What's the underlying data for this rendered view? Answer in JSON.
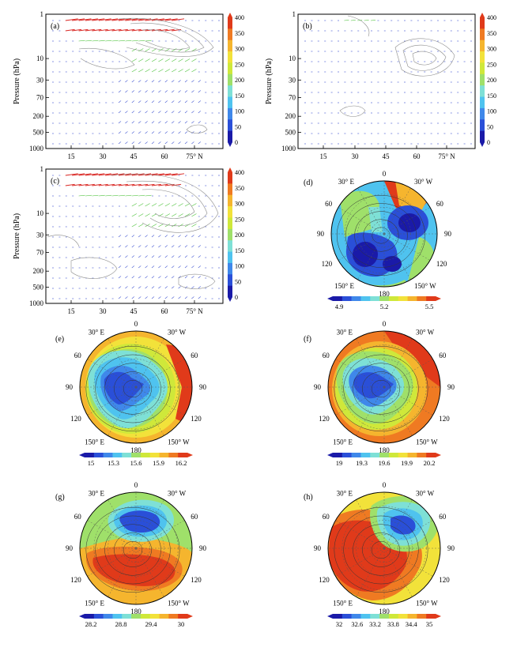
{
  "chart_data": [
    {
      "id": "a",
      "type": "vector-contour",
      "panel_label": "(a)",
      "ylabel": "Pressure (hPa)",
      "y_ticks": [
        "1",
        "10",
        "30",
        "70",
        "200",
        "500",
        "1000"
      ],
      "x_ticks": [
        "15",
        "30",
        "45",
        "60",
        "75° N"
      ],
      "colorbar_labels": [
        "400",
        "350",
        "300",
        "250",
        "200",
        "150",
        "100",
        "50",
        "0"
      ]
    },
    {
      "id": "b",
      "type": "vector-contour",
      "panel_label": "(b)",
      "ylabel": "Pressure (hPa)",
      "y_ticks": [
        "1",
        "10",
        "30",
        "70",
        "200",
        "500",
        "1000"
      ],
      "x_ticks": [
        "15",
        "30",
        "45",
        "60",
        "75° N"
      ],
      "colorbar_labels": [
        "400",
        "350",
        "300",
        "250",
        "200",
        "150",
        "100",
        "50",
        "0"
      ]
    },
    {
      "id": "c",
      "type": "vector-contour",
      "panel_label": "(c)",
      "ylabel": "Pressure (hPa)",
      "y_ticks": [
        "1",
        "10",
        "30",
        "70",
        "200",
        "500",
        "1000"
      ],
      "x_ticks": [
        "15",
        "30",
        "45",
        "60",
        "75° N"
      ],
      "colorbar_labels": [
        "400",
        "350",
        "300",
        "250",
        "200",
        "150",
        "100",
        "50",
        "0"
      ]
    },
    {
      "id": "d",
      "type": "polar-map",
      "panel_label": "(d)",
      "lon_labels": [
        "0",
        "30° W",
        "60",
        "90",
        "120",
        "150° W",
        "180",
        "150° E",
        "120",
        "90",
        "60",
        "30° E"
      ],
      "colorbar_ticks": [
        "4.9",
        "5.2",
        "5.5"
      ]
    },
    {
      "id": "e",
      "type": "polar-map",
      "panel_label": "(e)",
      "lon_labels": [
        "0",
        "30° W",
        "60",
        "90",
        "120",
        "150° W",
        "180",
        "150° E",
        "120",
        "90",
        "60",
        "30° E"
      ],
      "colorbar_ticks": [
        "15",
        "15.3",
        "15.6",
        "15.9",
        "16.2"
      ]
    },
    {
      "id": "f",
      "type": "polar-map",
      "panel_label": "(f)",
      "lon_labels": [
        "0",
        "30° W",
        "60",
        "90",
        "120",
        "150° W",
        "180",
        "150° E",
        "120",
        "90",
        "60",
        "30° E"
      ],
      "colorbar_ticks": [
        "19",
        "19.3",
        "19.6",
        "19.9",
        "20.2"
      ]
    },
    {
      "id": "g",
      "type": "polar-map",
      "panel_label": "(g)",
      "lon_labels": [
        "0",
        "30° W",
        "60",
        "90",
        "120",
        "150° W",
        "180",
        "150° E",
        "120",
        "90",
        "60",
        "30° E"
      ],
      "colorbar_ticks": [
        "28.2",
        "28.8",
        "29.4",
        "30"
      ]
    },
    {
      "id": "h",
      "type": "polar-map",
      "panel_label": "(h)",
      "lon_labels": [
        "0",
        "30° W",
        "60",
        "90",
        "120",
        "150° W",
        "180",
        "150° E",
        "120",
        "90",
        "60",
        "30° E"
      ],
      "colorbar_ticks": [
        "32",
        "32.6",
        "33.2",
        "33.8",
        "34.4",
        "35"
      ]
    }
  ],
  "colors": {
    "scale": [
      "#1a1aa8",
      "#2a4fd8",
      "#3f88ea",
      "#4fc3ef",
      "#7ee0d6",
      "#9fe06a",
      "#cfe83a",
      "#f2e23a",
      "#f5b52e",
      "#ef7a22",
      "#e03a1a"
    ],
    "arrow_blue": "#3a4fd0",
    "arrow_green": "#4cc23a",
    "arrow_red": "#d8201c",
    "contour": "#8a8a8a"
  }
}
